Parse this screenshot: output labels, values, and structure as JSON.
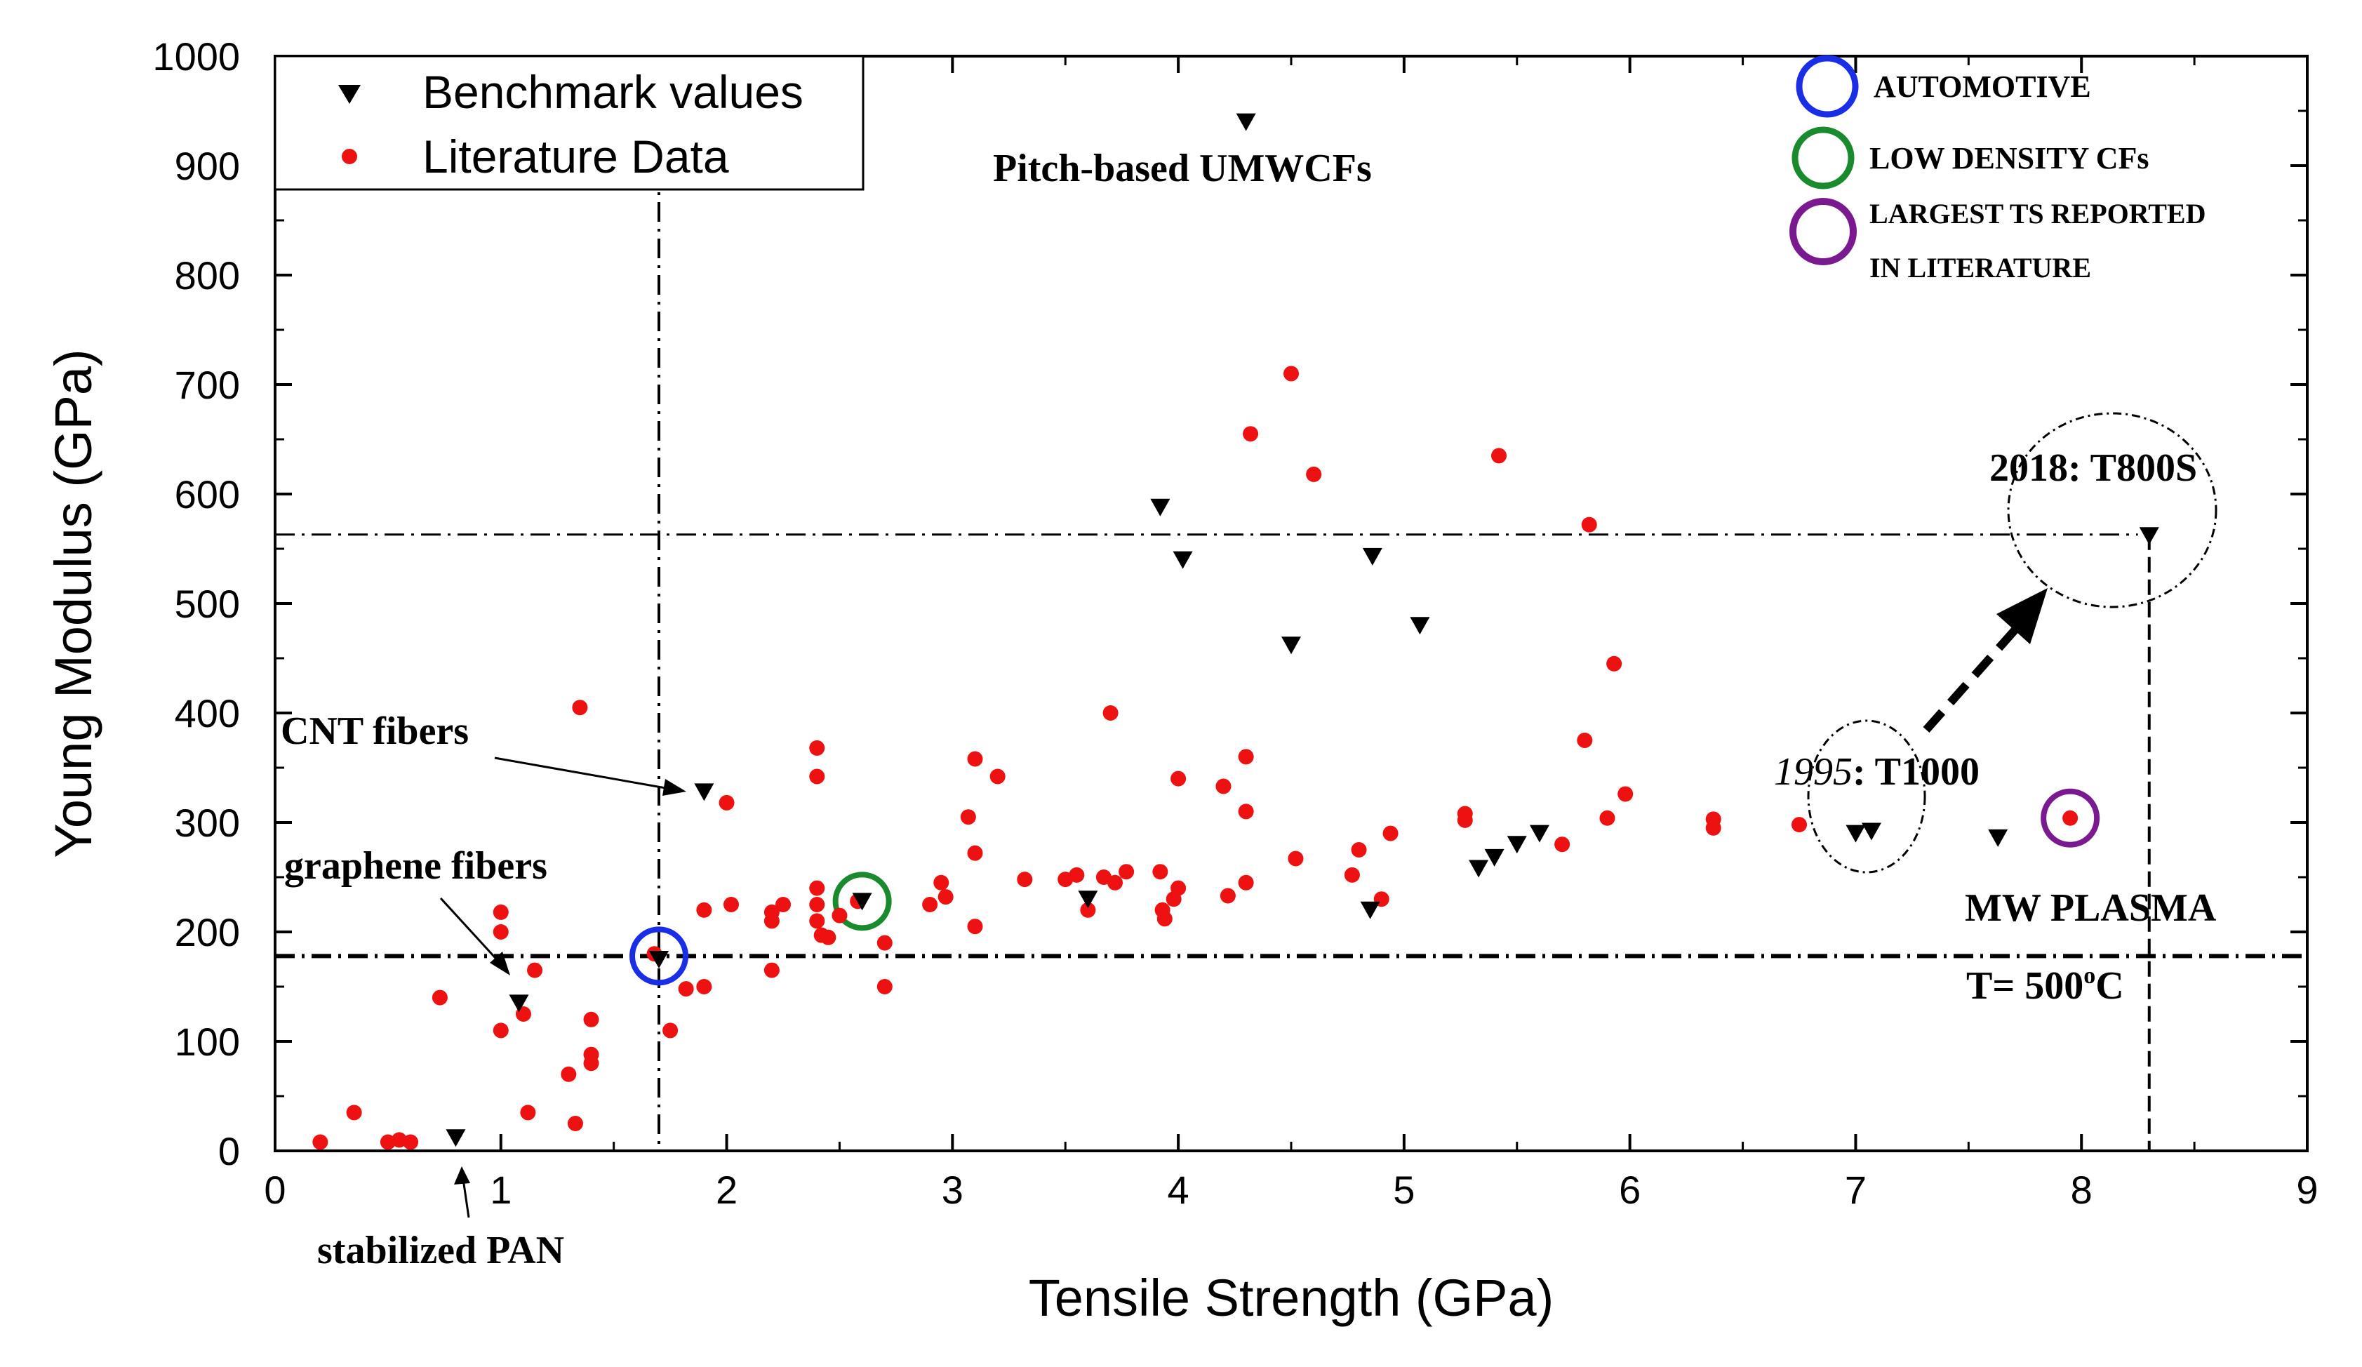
{
  "chart_data": {
    "type": "scatter",
    "xlabel": "Tensile Strength (GPa)",
    "ylabel": "Young Modulus (GPa)",
    "xlim": [
      0,
      9
    ],
    "ylim": [
      0,
      1000
    ],
    "x_ticks": [
      0,
      1,
      2,
      3,
      4,
      5,
      6,
      7,
      8,
      9
    ],
    "y_ticks": [
      0,
      100,
      200,
      300,
      400,
      500,
      600,
      700,
      800,
      900,
      1000
    ],
    "grid": false,
    "legend": {
      "placement": "top-left",
      "entries": [
        "Benchmark values",
        "Literature Data"
      ]
    },
    "series": [
      {
        "name": "Benchmark values",
        "marker": "triangle-down",
        "color": "#000000",
        "points": [
          [
            0.8,
            12
          ],
          [
            1.08,
            135
          ],
          [
            1.7,
            175
          ],
          [
            1.9,
            328
          ],
          [
            2.6,
            228
          ],
          [
            3.6,
            230
          ],
          [
            3.92,
            588
          ],
          [
            4.02,
            540
          ],
          [
            4.3,
            940
          ],
          [
            4.5,
            462
          ],
          [
            4.85,
            220
          ],
          [
            4.86,
            543
          ],
          [
            5.07,
            480
          ],
          [
            5.33,
            258
          ],
          [
            5.4,
            268
          ],
          [
            5.5,
            280
          ],
          [
            5.6,
            290
          ],
          [
            7.0,
            290
          ],
          [
            7.07,
            292
          ],
          [
            7.63,
            286
          ],
          [
            8.3,
            562
          ]
        ]
      },
      {
        "name": "Literature Data",
        "marker": "circle",
        "color": "#ee1111",
        "points": [
          [
            0.2,
            8
          ],
          [
            0.35,
            35
          ],
          [
            0.5,
            8
          ],
          [
            0.55,
            10
          ],
          [
            0.6,
            8
          ],
          [
            0.73,
            140
          ],
          [
            1.0,
            218
          ],
          [
            1.0,
            200
          ],
          [
            1.0,
            110
          ],
          [
            1.1,
            125
          ],
          [
            1.12,
            35
          ],
          [
            1.15,
            165
          ],
          [
            1.3,
            70
          ],
          [
            1.33,
            25
          ],
          [
            1.35,
            405
          ],
          [
            1.4,
            120
          ],
          [
            1.4,
            88
          ],
          [
            1.4,
            80
          ],
          [
            1.68,
            180
          ],
          [
            1.75,
            110
          ],
          [
            1.82,
            148
          ],
          [
            1.9,
            220
          ],
          [
            1.9,
            150
          ],
          [
            2.0,
            318
          ],
          [
            2.02,
            225
          ],
          [
            2.2,
            210
          ],
          [
            2.2,
            165
          ],
          [
            2.2,
            218
          ],
          [
            2.25,
            225
          ],
          [
            2.4,
            368
          ],
          [
            2.4,
            342
          ],
          [
            2.4,
            240
          ],
          [
            2.4,
            225
          ],
          [
            2.4,
            210
          ],
          [
            2.42,
            197
          ],
          [
            2.45,
            195
          ],
          [
            2.5,
            215
          ],
          [
            2.58,
            228
          ],
          [
            2.7,
            190
          ],
          [
            2.7,
            150
          ],
          [
            2.9,
            225
          ],
          [
            2.95,
            245
          ],
          [
            2.97,
            232
          ],
          [
            3.07,
            305
          ],
          [
            3.1,
            358
          ],
          [
            3.1,
            272
          ],
          [
            3.1,
            205
          ],
          [
            3.2,
            342
          ],
          [
            3.32,
            248
          ],
          [
            3.5,
            248
          ],
          [
            3.55,
            252
          ],
          [
            3.6,
            220
          ],
          [
            3.67,
            250
          ],
          [
            3.7,
            400
          ],
          [
            3.72,
            245
          ],
          [
            3.77,
            255
          ],
          [
            3.92,
            255
          ],
          [
            3.93,
            220
          ],
          [
            3.94,
            212
          ],
          [
            3.98,
            230
          ],
          [
            4.0,
            240
          ],
          [
            4.0,
            340
          ],
          [
            4.2,
            333
          ],
          [
            4.22,
            233
          ],
          [
            4.3,
            360
          ],
          [
            4.3,
            310
          ],
          [
            4.3,
            245
          ],
          [
            4.32,
            655
          ],
          [
            4.5,
            710
          ],
          [
            4.52,
            267
          ],
          [
            4.6,
            618
          ],
          [
            4.77,
            252
          ],
          [
            4.8,
            275
          ],
          [
            4.9,
            230
          ],
          [
            4.94,
            290
          ],
          [
            5.27,
            308
          ],
          [
            5.27,
            302
          ],
          [
            5.42,
            635
          ],
          [
            5.7,
            280
          ],
          [
            5.8,
            375
          ],
          [
            5.82,
            572
          ],
          [
            5.9,
            304
          ],
          [
            5.93,
            445
          ],
          [
            5.98,
            326
          ],
          [
            6.37,
            303
          ],
          [
            6.37,
            295
          ],
          [
            6.75,
            298
          ],
          [
            7.95,
            304
          ]
        ]
      }
    ],
    "reference_lines": [
      {
        "orientation": "horizontal",
        "y": 178,
        "style": "dash-dot"
      },
      {
        "orientation": "horizontal",
        "y": 563,
        "style": "dash-dot"
      },
      {
        "orientation": "vertical",
        "x": 1.7,
        "style": "dash-dot"
      },
      {
        "orientation": "vertical",
        "x": 8.3,
        "style": "dashed"
      }
    ],
    "highlight_circles": [
      {
        "label": "AUTOMOTIVE",
        "color": "#1a2ee6",
        "x": 1.7,
        "y": 178
      },
      {
        "label": "LOW DENSITY CFs",
        "color": "#1a8a2e",
        "x": 2.6,
        "y": 228
      },
      {
        "label": "LARGEST TS REPORTED IN LITERATURE",
        "color": "#7a1a90",
        "x": 7.95,
        "y": 304
      }
    ],
    "annotations": {
      "pitch": "Pitch-based UMWCFs",
      "cnt": "CNT fibers",
      "graphene": "graphene fibers",
      "pan": "stabilized PAN",
      "t800_year": "2018: T800S",
      "t1000_year": "1995",
      "t1000_name": ": T1000",
      "mw_plasma": "MW PLASMA",
      "temp_prefix": "T= 500",
      "temp_sup": "o",
      "temp_suffix": "C"
    },
    "circle_legend": {
      "automotive": "AUTOMOTIVE",
      "low_density": "LOW DENSITY CFs",
      "largest_line1": "LARGEST TS REPORTED",
      "largest_line2": "IN LITERATURE"
    }
  }
}
